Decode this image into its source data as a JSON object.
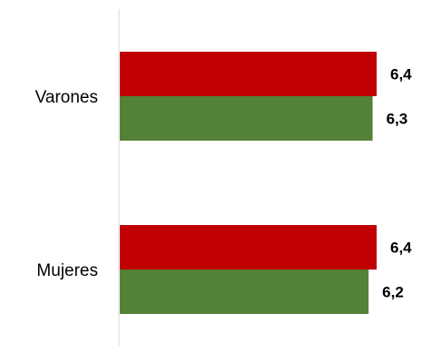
{
  "chart_data": {
    "type": "bar",
    "orientation": "horizontal",
    "categories": [
      "Varones",
      "Mujeres"
    ],
    "series": [
      {
        "values": [
          6.4,
          6.4
        ],
        "color": "#c00000"
      },
      {
        "values": [
          6.3,
          6.2
        ],
        "color": "#538135"
      }
    ],
    "data_labels": [
      [
        "6,4",
        "6,4"
      ],
      [
        "6,3",
        "6,2"
      ]
    ],
    "xlim": [
      0,
      6.4
    ],
    "grid": false,
    "legend": "none"
  }
}
